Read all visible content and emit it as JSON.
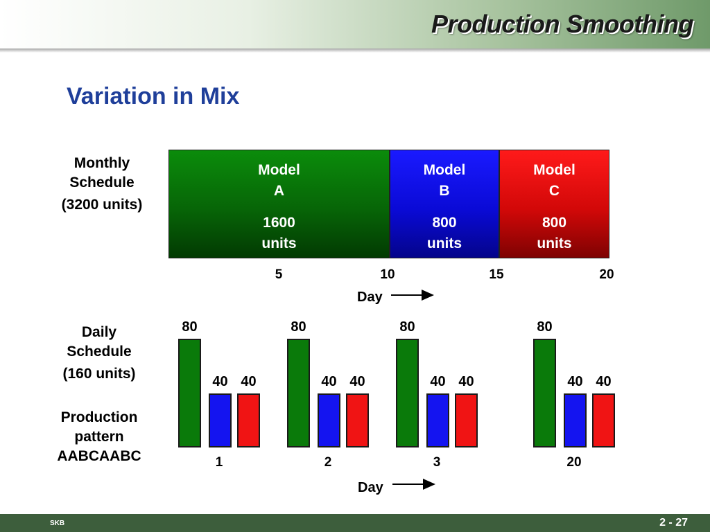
{
  "header": {
    "title": "Production Smoothing"
  },
  "subtitle": "Variation in Mix",
  "monthly": {
    "label_line1": "Monthly",
    "label_line2": "Schedule",
    "label_line3": "(3200 units)",
    "blocks": [
      {
        "model_line1": "Model",
        "model_line2": "A",
        "units_line1": "1600",
        "units_line2": "units",
        "color": "#0a8a0a"
      },
      {
        "model_line1": "Model",
        "model_line2": "B",
        "units_line1": "800",
        "units_line2": "units",
        "color": "#1010ee"
      },
      {
        "model_line1": "Model",
        "model_line2": "C",
        "units_line1": "800",
        "units_line2": "units",
        "color": "#ee1010"
      }
    ],
    "ticks": [
      "5",
      "10",
      "15",
      "20"
    ],
    "day_label": "Day"
  },
  "daily": {
    "label_line1": "Daily",
    "label_line2": "Schedule",
    "label_line3": "(160 units)",
    "pattern_line1": "Production",
    "pattern_line2": "pattern",
    "pattern_line3": "AABCAABC",
    "groups": [
      {
        "day": "1",
        "values": [
          80,
          40,
          40
        ],
        "labels": [
          "80",
          "40",
          "40"
        ]
      },
      {
        "day": "2",
        "values": [
          80,
          40,
          40
        ],
        "labels": [
          "80",
          "40",
          "40"
        ]
      },
      {
        "day": "3",
        "values": [
          80,
          40,
          40
        ],
        "labels": [
          "80",
          "40",
          "40"
        ]
      },
      {
        "day": "20",
        "values": [
          80,
          40,
          40
        ],
        "labels": [
          "80",
          "40",
          "40"
        ]
      }
    ],
    "colors": [
      "#0a7a0a",
      "#1414f0",
      "#f01414"
    ],
    "day_label": "Day"
  },
  "chart_data": {
    "type": "bar",
    "categories": [
      "1",
      "2",
      "3",
      "20"
    ],
    "xlabel": "Day",
    "series": [
      {
        "values": [
          80,
          80,
          80,
          80
        ]
      },
      {
        "values": [
          40,
          40,
          40,
          40
        ]
      },
      {
        "values": [
          40,
          40,
          40,
          40
        ]
      }
    ]
  },
  "footer": {
    "left": "SKB",
    "right": "2 - 27"
  }
}
